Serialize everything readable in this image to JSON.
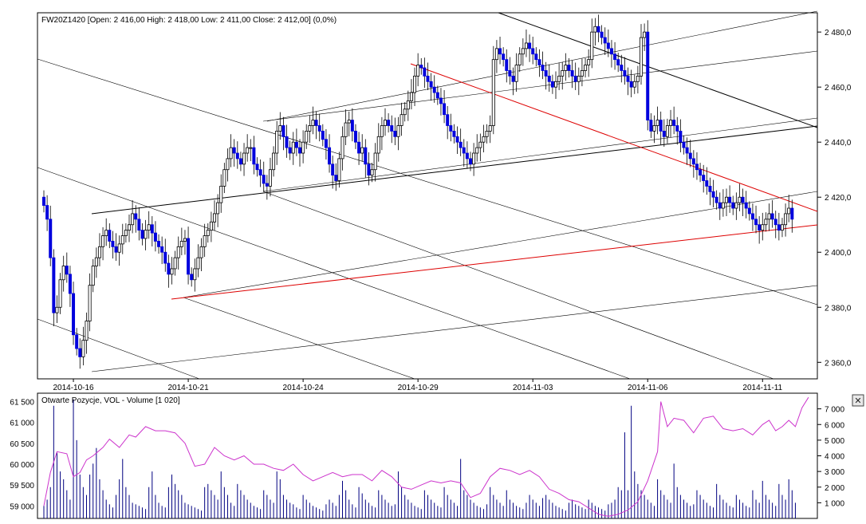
{
  "price_panel": {
    "header": "FW20Z1420 [Open: 2 416,00   High: 2 418,00   Low: 2 411,00   Close: 2 412,00] (0,0%)"
  },
  "volume_panel": {
    "header": "Otwarte Pozycje, VOL - Volume [1 020]",
    "close_glyph": "✕"
  },
  "colors": {
    "bull": "#ffffff",
    "bear": "#0000dd",
    "wick": "#000000",
    "red_line": "#dd0000",
    "trend_line": "#000000",
    "volume": "#000080",
    "open_interest": "#cc33cc"
  },
  "chart_data": [
    {
      "type": "candlestick",
      "instrument": "FW20Z1420",
      "ohlc_current": {
        "open": 2416,
        "high": 2418,
        "low": 2411,
        "close": 2412,
        "change": "0,0%"
      },
      "x_tick_labels": [
        "2014-10-16",
        "2014-10-21",
        "2014-10-24",
        "2014-10-29",
        "2014-11-03",
        "2014-11-06",
        "2014-11-11"
      ],
      "x_tick_bars": [
        9,
        44,
        79,
        114,
        149,
        184,
        219
      ],
      "y_tick_labels": [
        "2 360,0",
        "2 380,0",
        "2 400,0",
        "2 420,0",
        "2 440,0",
        "2 460,0",
        "2 480,0"
      ],
      "y_ticks": [
        2360,
        2380,
        2400,
        2420,
        2440,
        2460,
        2480
      ],
      "ylim": [
        2354,
        2487
      ],
      "bar_count": 235,
      "closes": [
        2417,
        2412,
        2398,
        2378,
        2380,
        2390,
        2395,
        2392,
        2385,
        2370,
        2365,
        2362,
        2368,
        2375,
        2388,
        2395,
        2398,
        2402,
        2406,
        2408,
        2404,
        2402,
        2400,
        2403,
        2406,
        2408,
        2410,
        2414,
        2412,
        2408,
        2405,
        2408,
        2410,
        2407,
        2404,
        2402,
        2400,
        2396,
        2392,
        2394,
        2398,
        2402,
        2404,
        2405,
        2392,
        2390,
        2394,
        2398,
        2402,
        2406,
        2408,
        2411,
        2414,
        2418,
        2424,
        2430,
        2434,
        2438,
        2436,
        2434,
        2432,
        2436,
        2438,
        2438,
        2432,
        2430,
        2428,
        2425,
        2424,
        2430,
        2436,
        2444,
        2446,
        2442,
        2438,
        2436,
        2440,
        2438,
        2436,
        2440,
        2444,
        2446,
        2448,
        2446,
        2444,
        2441,
        2438,
        2432,
        2428,
        2426,
        2434,
        2442,
        2447,
        2448,
        2444,
        2440,
        2436,
        2438,
        2432,
        2428,
        2430,
        2436,
        2442,
        2446,
        2448,
        2446,
        2444,
        2442,
        2446,
        2450,
        2452,
        2455,
        2458,
        2464,
        2468,
        2467,
        2464,
        2462,
        2460,
        2458,
        2456,
        2454,
        2450,
        2446,
        2444,
        2442,
        2440,
        2438,
        2436,
        2434,
        2432,
        2436,
        2438,
        2440,
        2442,
        2444,
        2446,
        2470,
        2474,
        2472,
        2470,
        2466,
        2464,
        2462,
        2468,
        2472,
        2474,
        2476,
        2474,
        2472,
        2470,
        2468,
        2466,
        2464,
        2462,
        2460,
        2462,
        2464,
        2466,
        2468,
        2466,
        2464,
        2462,
        2464,
        2466,
        2468,
        2470,
        2480,
        2482,
        2480,
        2478,
        2476,
        2474,
        2472,
        2470,
        2468,
        2466,
        2464,
        2462,
        2460,
        2462,
        2464,
        2478,
        2480,
        2448,
        2444,
        2446,
        2448,
        2444,
        2442,
        2446,
        2448,
        2446,
        2444,
        2440,
        2438,
        2436,
        2434,
        2432,
        2430,
        2428,
        2426,
        2424,
        2422,
        2420,
        2418,
        2416,
        2418,
        2420,
        2418,
        2416,
        2418,
        2420,
        2418,
        2416,
        2414,
        2412,
        2410,
        2408,
        2410,
        2412,
        2414,
        2412,
        2410,
        2408,
        2410,
        2414,
        2416,
        2412
      ]
    },
    {
      "type": "bar+line",
      "series": [
        {
          "name": "VOL - Volume",
          "axis": "right",
          "ylim": [
            0,
            8000
          ],
          "y_tick_labels": [
            "1 000",
            "2 000",
            "3 000",
            "4 000",
            "5 000",
            "6 000",
            "7 000"
          ],
          "y_ticks": [
            1000,
            2000,
            3000,
            4000,
            5000,
            6000,
            7000
          ],
          "values": [
            800,
            1200,
            2000,
            7200,
            4200,
            3000,
            2500,
            1800,
            1200,
            7600,
            5000,
            2800,
            2000,
            1500,
            2800,
            3500,
            4500,
            2500,
            1800,
            1200,
            900,
            700,
            1500,
            2500,
            3800,
            2000,
            1500,
            1000,
            900,
            800,
            700,
            600,
            2000,
            3000,
            1500,
            1000,
            800,
            700,
            2000,
            2800,
            2200,
            1800,
            1500,
            1000,
            900,
            800,
            700,
            600,
            500,
            2000,
            2200,
            1800,
            1500,
            1200,
            3000,
            2000,
            1500,
            1000,
            800,
            2200,
            1800,
            1500,
            1200,
            1000,
            800,
            700,
            600,
            1800,
            1500,
            1200,
            1000,
            3000,
            2500,
            1500,
            1200,
            1000,
            900,
            700,
            600,
            1500,
            1200,
            1000,
            800,
            700,
            600,
            500,
            900,
            1200,
            1000,
            800,
            1500,
            2400,
            1800,
            1200,
            900,
            700,
            2000,
            1600,
            1200,
            1000,
            800,
            700,
            1800,
            1500,
            1200,
            1000,
            800,
            900,
            3000,
            2000,
            1500,
            1200,
            1000,
            800,
            700,
            600,
            1800,
            1500,
            1200,
            1000,
            800,
            700,
            2000,
            1500,
            1200,
            1000,
            800,
            3800,
            1800,
            1500,
            1200,
            1000,
            800,
            700,
            600,
            900,
            2000,
            1500,
            1200,
            1000,
            800,
            1800,
            1200,
            1000,
            800,
            700,
            600,
            1000,
            1500,
            1200,
            1000,
            800,
            1300,
            1500,
            1200,
            1000,
            800,
            700,
            600,
            500,
            1000,
            1200,
            900,
            800,
            700,
            600,
            1200,
            1000,
            800,
            700,
            600,
            500,
            900,
            1000,
            1200,
            2000,
            1800,
            5500,
            1800,
            7200,
            3000,
            2200,
            1800,
            1500,
            1200,
            1000,
            800,
            2500,
            1800,
            1500,
            1200,
            1000,
            3500,
            2000,
            1500,
            1200,
            1000,
            800,
            900,
            1800,
            1500,
            1200,
            1000,
            800,
            700,
            2200,
            1500,
            1200,
            1000,
            800,
            700,
            1500,
            1200,
            1000,
            800,
            700,
            1800,
            1200,
            1000,
            2400,
            1500,
            1200,
            1000,
            800,
            2200,
            1500,
            1200,
            2500,
            1800,
            1000
          ]
        },
        {
          "name": "Otwarte Pozycje",
          "axis": "left",
          "ylim": [
            58700,
            61700
          ],
          "y_tick_labels": [
            "59 000",
            "59 500",
            "60 000",
            "60 500",
            "61 000",
            "61 500"
          ],
          "y_ticks": [
            59000,
            59500,
            60000,
            60500,
            61000,
            61500
          ],
          "points": [
            [
              0,
              59000
            ],
            [
              2,
              59800
            ],
            [
              4,
              60300
            ],
            [
              7,
              60250
            ],
            [
              9,
              59700
            ],
            [
              11,
              59800
            ],
            [
              13,
              60100
            ],
            [
              15,
              60200
            ],
            [
              18,
              60400
            ],
            [
              20,
              60600
            ],
            [
              23,
              60400
            ],
            [
              26,
              60700
            ],
            [
              28,
              60650
            ],
            [
              31,
              60900
            ],
            [
              34,
              60800
            ],
            [
              37,
              60800
            ],
            [
              40,
              60750
            ],
            [
              43,
              60500
            ],
            [
              46,
              59950
            ],
            [
              49,
              60000
            ],
            [
              52,
              60400
            ],
            [
              55,
              60200
            ],
            [
              58,
              60100
            ],
            [
              61,
              60200
            ],
            [
              64,
              60000
            ],
            [
              67,
              60000
            ],
            [
              70,
              59900
            ],
            [
              73,
              59850
            ],
            [
              76,
              60000
            ],
            [
              79,
              59750
            ],
            [
              82,
              59600
            ],
            [
              85,
              59700
            ],
            [
              88,
              59800
            ],
            [
              91,
              59700
            ],
            [
              94,
              59750
            ],
            [
              97,
              59750
            ],
            [
              100,
              59600
            ],
            [
              103,
              59850
            ],
            [
              106,
              59700
            ],
            [
              109,
              59450
            ],
            [
              112,
              59400
            ],
            [
              115,
              59500
            ],
            [
              118,
              59600
            ],
            [
              121,
              59550
            ],
            [
              124,
              59600
            ],
            [
              127,
              59550
            ],
            [
              130,
              59200
            ],
            [
              133,
              59300
            ],
            [
              136,
              59700
            ],
            [
              139,
              59900
            ],
            [
              142,
              59850
            ],
            [
              145,
              59750
            ],
            [
              148,
              59850
            ],
            [
              151,
              59700
            ],
            [
              154,
              59400
            ],
            [
              157,
              59300
            ],
            [
              160,
              59150
            ],
            [
              163,
              59100
            ],
            [
              166,
              58950
            ],
            [
              169,
              58800
            ],
            [
              172,
              58750
            ],
            [
              175,
              58800
            ],
            [
              178,
              58900
            ],
            [
              181,
              59100
            ],
            [
              184,
              59600
            ],
            [
              187,
              60300
            ],
            [
              188,
              61500
            ],
            [
              190,
              60900
            ],
            [
              192,
              61100
            ],
            [
              195,
              61050
            ],
            [
              198,
              60750
            ],
            [
              201,
              61100
            ],
            [
              204,
              61150
            ],
            [
              207,
              60850
            ],
            [
              210,
              60800
            ],
            [
              213,
              60850
            ],
            [
              216,
              60700
            ],
            [
              219,
              60950
            ],
            [
              221,
              61050
            ],
            [
              223,
              60800
            ],
            [
              225,
              60900
            ],
            [
              227,
              61050
            ],
            [
              229,
              60900
            ],
            [
              231,
              61350
            ],
            [
              233,
              61600
            ]
          ]
        }
      ],
      "x_count": 235
    }
  ]
}
